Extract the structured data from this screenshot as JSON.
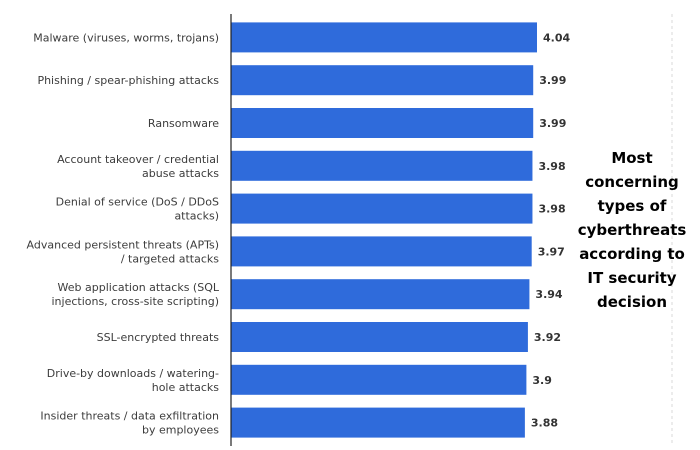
{
  "side_title": "Most\nconcerning\ntypes of\ncyberthreats\naccording to\nIT security\ndecision",
  "colors": {
    "bar": "#2f6bdb",
    "axis": "#222222",
    "gridline": "#d9d9d9"
  },
  "chart_data": {
    "type": "bar",
    "orientation": "horizontal",
    "categories": [
      [
        "Malware (viruses, worms, trojans)"
      ],
      [
        "Phishing / spear-phishing attacks"
      ],
      [
        "Ransomware"
      ],
      [
        "Account takeover / credential",
        "abuse attacks"
      ],
      [
        "Denial of service (DoS / DDoS",
        "attacks)"
      ],
      [
        "Advanced persistent threats (APTs)",
        "/ targeted attacks"
      ],
      [
        "Web application attacks (SQL",
        "injections, cross-site scripting)"
      ],
      [
        "SSL-encrypted threats"
      ],
      [
        "Drive-by downloads / watering-",
        "hole attacks"
      ],
      [
        "Insider threats / data exfiltration",
        "by employees"
      ]
    ],
    "values": [
      4.04,
      3.99,
      3.99,
      3.98,
      3.98,
      3.97,
      3.94,
      3.92,
      3.9,
      3.88
    ],
    "value_labels": [
      "4.04",
      "3.99",
      "3.99",
      "3.98",
      "3.98",
      "3.97",
      "3.94",
      "3.92",
      "3.9",
      "3.88"
    ],
    "xlim": [
      0,
      4.04
    ],
    "grid": false,
    "legend": "none"
  }
}
